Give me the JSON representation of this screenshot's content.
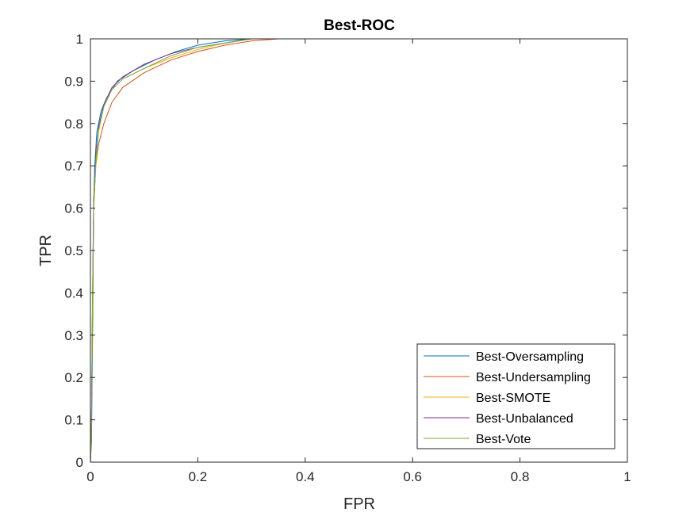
{
  "chart_data": {
    "type": "line",
    "title": "Best-ROC",
    "xlabel": "FPR",
    "ylabel": "TPR",
    "xlim": [
      0,
      1
    ],
    "ylim": [
      0,
      1
    ],
    "x_ticks": [
      0,
      0.2,
      0.4,
      0.6,
      0.8,
      1
    ],
    "x_tick_labels": [
      "0",
      "0.2",
      "0.4",
      "0.6",
      "0.8",
      "1"
    ],
    "y_ticks": [
      0,
      0.1,
      0.2,
      0.3,
      0.4,
      0.5,
      0.6,
      0.7,
      0.8,
      0.9,
      1
    ],
    "y_tick_labels": [
      "0",
      "0.1",
      "0.2",
      "0.3",
      "0.4",
      "0.5",
      "0.6",
      "0.7",
      "0.8",
      "0.9",
      "1"
    ],
    "grid": false,
    "legend_position": "bottom-right",
    "series": [
      {
        "name": "Best-Oversampling",
        "color": "#0072BD",
        "points": [
          [
            0,
            0
          ],
          [
            0.002,
            0.05
          ],
          [
            0.004,
            0.3
          ],
          [
            0.006,
            0.6
          ],
          [
            0.008,
            0.7
          ],
          [
            0.012,
            0.78
          ],
          [
            0.02,
            0.83
          ],
          [
            0.03,
            0.86
          ],
          [
            0.05,
            0.9
          ],
          [
            0.08,
            0.925
          ],
          [
            0.12,
            0.95
          ],
          [
            0.16,
            0.97
          ],
          [
            0.2,
            0.985
          ],
          [
            0.25,
            0.995
          ],
          [
            0.3,
            1
          ],
          [
            1,
            1
          ]
        ]
      },
      {
        "name": "Best-Undersampling",
        "color": "#D95319",
        "points": [
          [
            0,
            0
          ],
          [
            0.002,
            0.1
          ],
          [
            0.004,
            0.35
          ],
          [
            0.006,
            0.6
          ],
          [
            0.01,
            0.7
          ],
          [
            0.015,
            0.75
          ],
          [
            0.025,
            0.8
          ],
          [
            0.04,
            0.85
          ],
          [
            0.06,
            0.885
          ],
          [
            0.1,
            0.92
          ],
          [
            0.15,
            0.95
          ],
          [
            0.2,
            0.97
          ],
          [
            0.25,
            0.985
          ],
          [
            0.3,
            0.995
          ],
          [
            0.35,
            1
          ],
          [
            1,
            1
          ]
        ]
      },
      {
        "name": "Best-SMOTE",
        "color": "#EDB120",
        "points": [
          [
            0,
            0
          ],
          [
            0.002,
            0.1
          ],
          [
            0.004,
            0.4
          ],
          [
            0.006,
            0.6
          ],
          [
            0.01,
            0.7
          ],
          [
            0.015,
            0.78
          ],
          [
            0.025,
            0.84
          ],
          [
            0.04,
            0.88
          ],
          [
            0.06,
            0.905
          ],
          [
            0.1,
            0.93
          ],
          [
            0.15,
            0.955
          ],
          [
            0.2,
            0.975
          ],
          [
            0.25,
            0.99
          ],
          [
            0.3,
            1
          ],
          [
            1,
            1
          ]
        ]
      },
      {
        "name": "Best-Unbalanced",
        "color": "#7E2F8E",
        "points": [
          [
            0,
            0
          ],
          [
            0.002,
            0.1
          ],
          [
            0.004,
            0.4
          ],
          [
            0.006,
            0.62
          ],
          [
            0.01,
            0.72
          ],
          [
            0.015,
            0.79
          ],
          [
            0.025,
            0.845
          ],
          [
            0.04,
            0.885
          ],
          [
            0.06,
            0.91
          ],
          [
            0.1,
            0.94
          ],
          [
            0.15,
            0.965
          ],
          [
            0.2,
            0.98
          ],
          [
            0.25,
            0.99
          ],
          [
            0.3,
            1
          ],
          [
            1,
            1
          ]
        ]
      },
      {
        "name": "Best-Vote",
        "color": "#77AC30",
        "points": [
          [
            0,
            0
          ],
          [
            0.002,
            0.1
          ],
          [
            0.004,
            0.4
          ],
          [
            0.006,
            0.6
          ],
          [
            0.01,
            0.71
          ],
          [
            0.015,
            0.785
          ],
          [
            0.025,
            0.84
          ],
          [
            0.04,
            0.88
          ],
          [
            0.06,
            0.905
          ],
          [
            0.1,
            0.93
          ],
          [
            0.15,
            0.96
          ],
          [
            0.2,
            0.98
          ],
          [
            0.25,
            0.99
          ],
          [
            0.3,
            1
          ],
          [
            1,
            1
          ]
        ]
      }
    ]
  }
}
